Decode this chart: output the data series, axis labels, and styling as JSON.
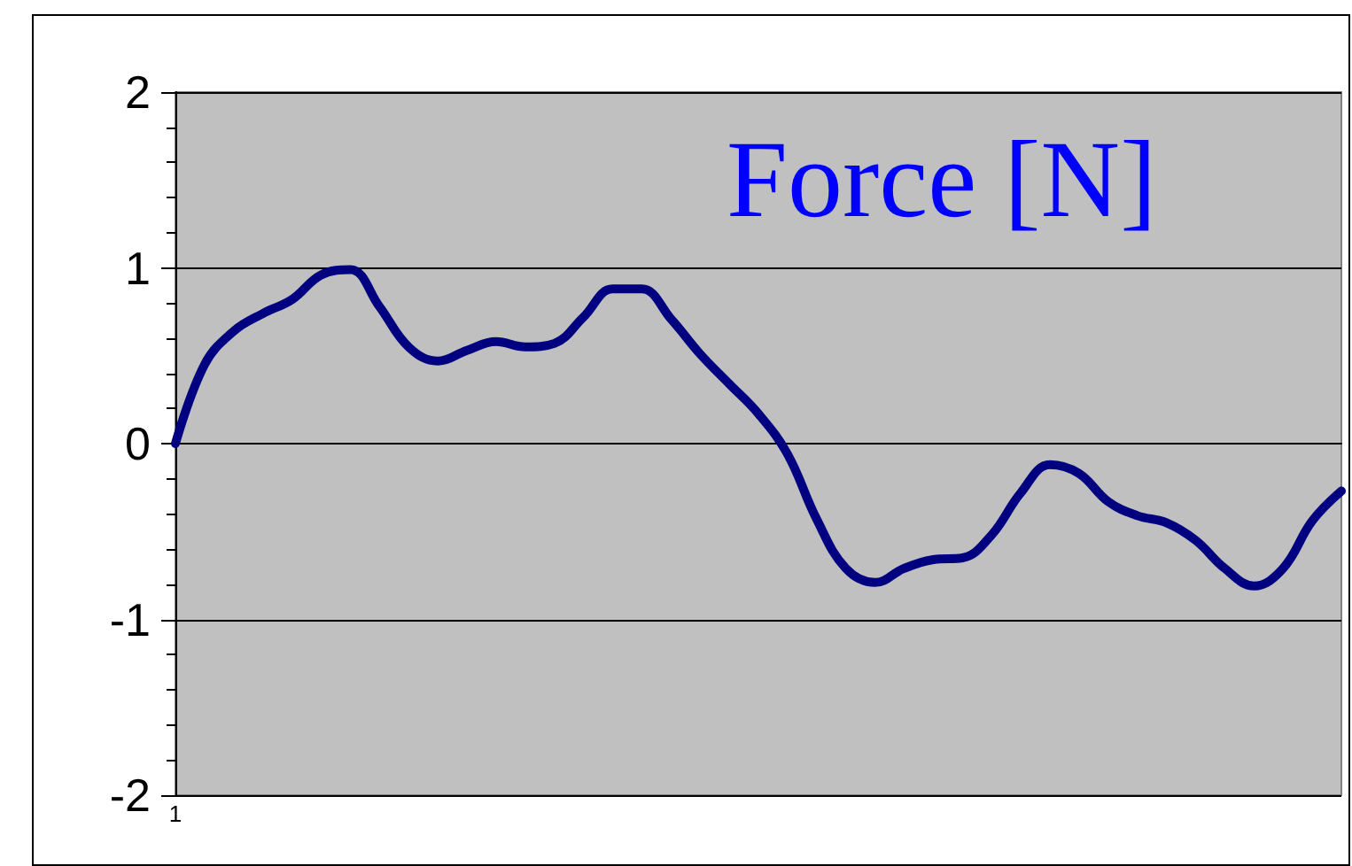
{
  "chart_data": {
    "type": "line",
    "title": "Force [N]",
    "categories": [
      "1",
      null,
      null,
      null,
      null,
      null,
      null,
      null,
      null,
      null,
      null,
      null,
      null,
      null,
      null,
      null,
      null,
      null,
      null,
      null,
      null,
      null,
      null,
      null,
      null,
      null,
      null,
      null,
      null,
      null,
      null,
      null,
      null,
      null,
      null,
      null,
      null,
      null,
      null,
      null,
      null
    ],
    "series": [
      {
        "color": "#000080",
        "values": [
          0,
          0.45,
          0.64,
          0.74,
          0.82,
          0.96,
          0.99,
          0.78,
          0.55,
          0.47,
          0.53,
          0.58,
          0.55,
          0.57,
          0.72,
          0.88,
          0.88,
          0.71,
          0.51,
          0.34,
          0.17,
          -0.06,
          -0.43,
          -0.71,
          -0.79,
          -0.71,
          -0.66,
          -0.65,
          -0.52,
          -0.28,
          -0.12,
          -0.17,
          -0.33,
          -0.41,
          -0.45,
          -0.55,
          -0.71,
          -0.81,
          -0.71,
          -0.44,
          -0.27
        ]
      }
    ],
    "ylim": [
      -2,
      2
    ],
    "yticks": [
      -2,
      {
        "value": -1.8,
        "label": null
      },
      {
        "value": -1.6,
        "label": null
      },
      {
        "value": -1.4,
        "label": null
      },
      {
        "value": -1.2,
        "label": null
      },
      -1,
      {
        "value": -0.8,
        "label": null
      },
      {
        "value": -0.6,
        "label": null
      },
      {
        "value": -0.4,
        "label": null
      },
      {
        "value": -0.2,
        "label": null
      },
      0,
      {
        "value": 0.2,
        "label": null
      },
      {
        "value": 0.4,
        "label": null
      },
      {
        "value": 0.6,
        "label": null
      },
      {
        "value": 0.8,
        "label": null
      },
      1,
      {
        "value": 1.2,
        "label": null
      },
      {
        "value": 1.4,
        "label": null
      },
      {
        "value": 1.6,
        "label": null
      },
      {
        "value": 1.8,
        "label": null
      },
      2
    ],
    "grid": "y",
    "marker": "none",
    "line_style": "solid"
  }
}
